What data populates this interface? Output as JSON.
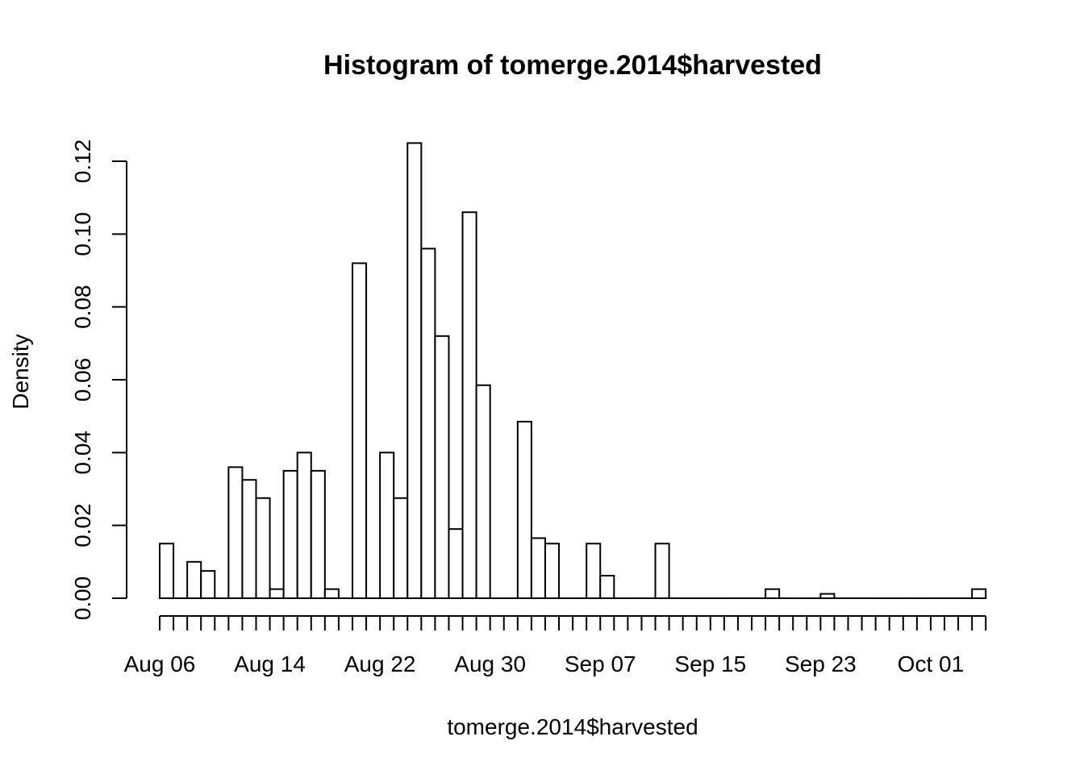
{
  "chart_data": {
    "type": "bar",
    "title": "Histogram of tomerge.2014$harvested",
    "xlabel": "tomerge.2014$harvested",
    "ylabel": "Density",
    "ylim": [
      0,
      0.125
    ],
    "yticks": [
      "0.00",
      "0.02",
      "0.04",
      "0.06",
      "0.08",
      "0.10",
      "0.12"
    ],
    "x_tick_labels": [
      "Aug 06",
      "Aug 14",
      "Aug 22",
      "Aug 30",
      "Sep 07",
      "Sep 15",
      "Sep 23",
      "Oct 01"
    ],
    "grid": false,
    "bins": [
      "Aug 06",
      "Aug 07",
      "Aug 08",
      "Aug 09",
      "Aug 10",
      "Aug 11",
      "Aug 12",
      "Aug 13",
      "Aug 14",
      "Aug 15",
      "Aug 16",
      "Aug 17",
      "Aug 18",
      "Aug 19",
      "Aug 20",
      "Aug 21",
      "Aug 22",
      "Aug 23",
      "Aug 24",
      "Aug 25",
      "Aug 26",
      "Aug 27",
      "Aug 28",
      "Aug 29",
      "Aug 30",
      "Aug 31",
      "Sep 01",
      "Sep 02",
      "Sep 03",
      "Sep 04",
      "Sep 05",
      "Sep 06",
      "Sep 07",
      "Sep 08",
      "Sep 09",
      "Sep 10",
      "Sep 11",
      "Sep 12",
      "Sep 13",
      "Sep 14",
      "Sep 15",
      "Sep 16",
      "Sep 17",
      "Sep 18",
      "Sep 19",
      "Sep 20",
      "Sep 21",
      "Sep 22",
      "Sep 23",
      "Sep 24",
      "Sep 25",
      "Sep 26",
      "Sep 27",
      "Sep 28",
      "Sep 29",
      "Sep 30",
      "Oct 01",
      "Oct 02",
      "Oct 03",
      "Oct 04"
    ],
    "values": [
      0.015,
      0,
      0.01,
      0.0075,
      0,
      0.036,
      0.0325,
      0.0275,
      0.0025,
      0.035,
      0.04,
      0.035,
      0.0025,
      0,
      0.092,
      0,
      0.04,
      0.0275,
      0.125,
      0.096,
      0.072,
      0.019,
      0.106,
      0.0585,
      0,
      0,
      0.0485,
      0.0165,
      0.015,
      0,
      0,
      0.015,
      0.0062,
      0,
      0,
      0,
      0.015,
      0,
      0,
      0,
      0,
      0,
      0,
      0,
      0.0025,
      0,
      0,
      0,
      0.0012,
      0,
      0,
      0,
      0,
      0,
      0,
      0,
      0,
      0,
      0,
      0.0025
    ]
  }
}
